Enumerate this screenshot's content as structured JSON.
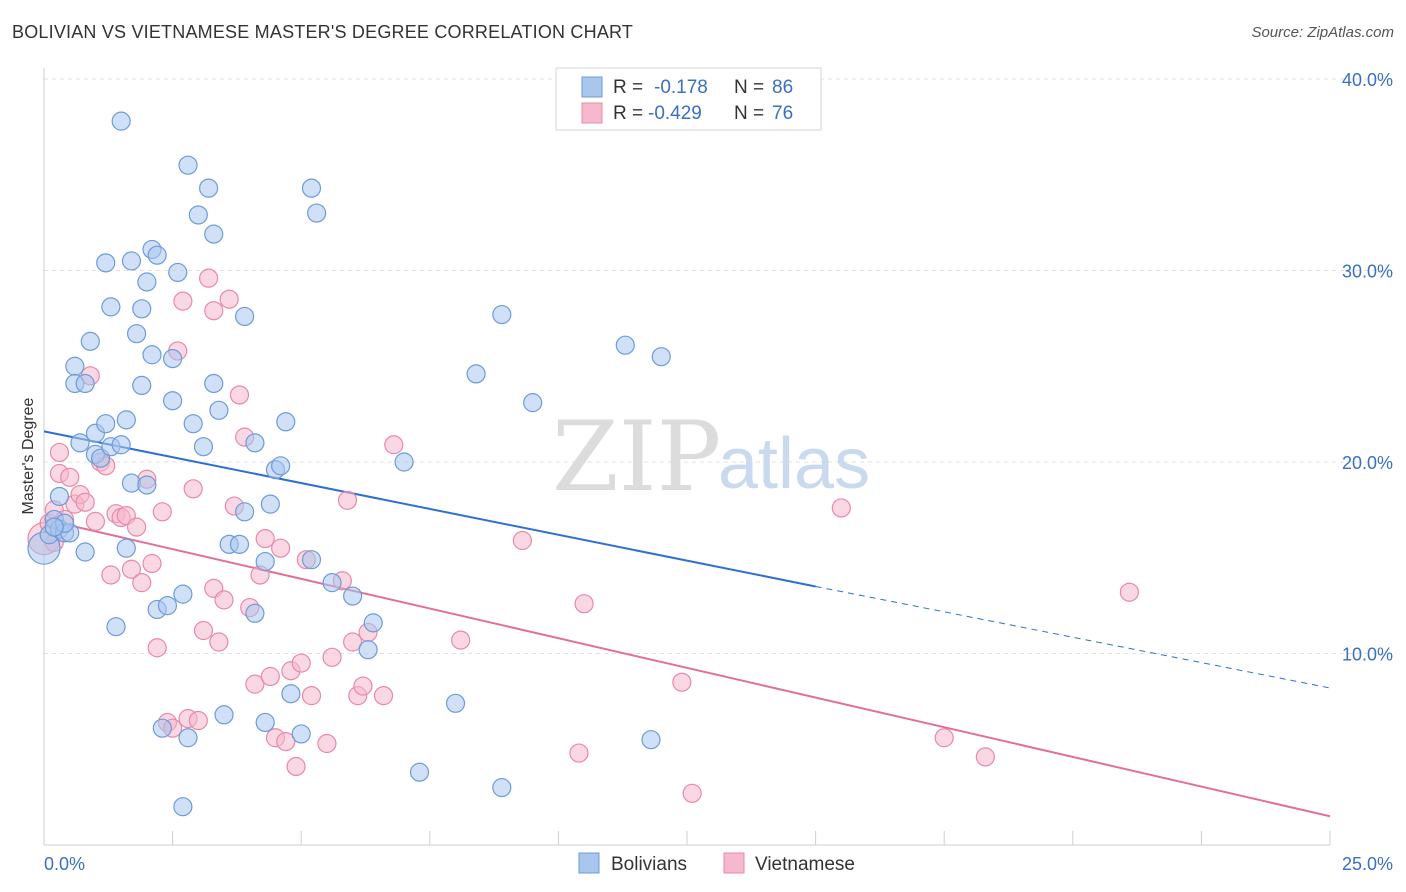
{
  "header": {
    "title": "BOLIVIAN VS VIETNAMESE MASTER'S DEGREE CORRELATION CHART",
    "source": "Source: ZipAtlas.com"
  },
  "watermark": {
    "zip": "ZIP",
    "atlas": "atlas"
  },
  "legend": {
    "r_label": "R =",
    "n_label": "N =",
    "series": [
      {
        "name": "Bolivians",
        "r": "-0.178",
        "n": "86"
      },
      {
        "name": "Vietnamese",
        "r": "-0.429",
        "n": "76"
      }
    ]
  },
  "colors": {
    "bolivians_fill": "#a9c6ef",
    "bolivians_stroke": "#6e9bd8",
    "bolivians_line": "#2f6fd1",
    "vietnamese_fill": "#f6b8cc",
    "vietnamese_stroke": "#e889a8",
    "vietnamese_line": "#e0709a",
    "tick_text": "#3a6fc4",
    "grid": "#e0e0e0"
  },
  "chart_data": {
    "type": "scatter",
    "ylabel": "Master's Degree",
    "xlim": [
      0,
      25
    ],
    "ylim": [
      0,
      40
    ],
    "x_tick_labels": [
      "0.0%",
      "25.0%"
    ],
    "y_tick_values": [
      10,
      20,
      30,
      40
    ],
    "y_tick_labels": [
      "10.0%",
      "20.0%",
      "30.0%",
      "40.0%"
    ],
    "grid": true,
    "legend_position": "top-center",
    "series": [
      {
        "name": "Bolivians",
        "r": -0.178,
        "n": 86,
        "trend": {
          "x0": 0,
          "y0": 21.6,
          "x1": 15,
          "y1": 13.5,
          "dash_to_x": 25,
          "dash_to_y": 8.2
        },
        "points": [
          [
            0.0,
            15.5
          ],
          [
            0.1,
            16.2
          ],
          [
            0.2,
            17.0
          ],
          [
            0.3,
            16.5
          ],
          [
            0.3,
            18.2
          ],
          [
            0.4,
            16.3
          ],
          [
            0.5,
            16.3
          ],
          [
            0.6,
            25.0
          ],
          [
            0.6,
            24.1
          ],
          [
            0.7,
            21.0
          ],
          [
            0.8,
            15.3
          ],
          [
            0.8,
            24.1
          ],
          [
            0.9,
            26.3
          ],
          [
            1.0,
            20.4
          ],
          [
            1.0,
            21.5
          ],
          [
            1.1,
            20.2
          ],
          [
            1.2,
            30.4
          ],
          [
            1.2,
            22.0
          ],
          [
            1.3,
            28.1
          ],
          [
            1.3,
            20.8
          ],
          [
            1.4,
            11.4
          ],
          [
            1.5,
            37.8
          ],
          [
            1.5,
            20.9
          ],
          [
            1.6,
            22.2
          ],
          [
            1.6,
            15.5
          ],
          [
            1.7,
            30.5
          ],
          [
            1.7,
            18.9
          ],
          [
            1.8,
            26.7
          ],
          [
            1.9,
            28.0
          ],
          [
            1.9,
            24.0
          ],
          [
            2.0,
            29.4
          ],
          [
            2.0,
            18.8
          ],
          [
            2.1,
            25.6
          ],
          [
            2.1,
            31.1
          ],
          [
            2.2,
            30.8
          ],
          [
            2.2,
            12.3
          ],
          [
            2.3,
            6.1
          ],
          [
            2.4,
            12.5
          ],
          [
            2.5,
            23.2
          ],
          [
            2.5,
            25.4
          ],
          [
            2.6,
            29.9
          ],
          [
            2.7,
            13.1
          ],
          [
            2.7,
            2.0
          ],
          [
            2.8,
            5.6
          ],
          [
            2.8,
            35.5
          ],
          [
            2.9,
            22.0
          ],
          [
            3.0,
            32.9
          ],
          [
            3.1,
            20.8
          ],
          [
            3.2,
            34.3
          ],
          [
            3.3,
            24.1
          ],
          [
            3.3,
            31.9
          ],
          [
            3.4,
            22.7
          ],
          [
            3.5,
            6.8
          ],
          [
            3.6,
            15.7
          ],
          [
            3.8,
            15.7
          ],
          [
            3.9,
            17.4
          ],
          [
            3.9,
            27.6
          ],
          [
            4.1,
            21.0
          ],
          [
            4.1,
            12.1
          ],
          [
            4.3,
            6.4
          ],
          [
            4.3,
            14.8
          ],
          [
            4.4,
            17.8
          ],
          [
            4.5,
            19.6
          ],
          [
            4.6,
            19.8
          ],
          [
            4.7,
            22.1
          ],
          [
            4.8,
            7.9
          ],
          [
            5.0,
            5.8
          ],
          [
            5.2,
            14.9
          ],
          [
            5.2,
            34.3
          ],
          [
            5.3,
            33.0
          ],
          [
            5.6,
            13.7
          ],
          [
            6.0,
            13.0
          ],
          [
            6.3,
            10.2
          ],
          [
            6.4,
            11.6
          ],
          [
            7.0,
            20.0
          ],
          [
            7.3,
            3.8
          ],
          [
            8.0,
            7.4
          ],
          [
            8.4,
            24.6
          ],
          [
            8.9,
            27.7
          ],
          [
            8.9,
            3.0
          ],
          [
            9.5,
            23.1
          ],
          [
            11.3,
            26.1
          ],
          [
            11.8,
            5.5
          ],
          [
            12.0,
            25.5
          ],
          [
            0.4,
            16.8
          ],
          [
            0.2,
            16.6
          ]
        ]
      },
      {
        "name": "Vietnamese",
        "r": -0.429,
        "n": 76,
        "trend": {
          "x0": 0,
          "y0": 17.0,
          "x1": 25,
          "y1": 1.5
        },
        "points": [
          [
            0.0,
            16.0
          ],
          [
            0.1,
            16.8
          ],
          [
            0.2,
            17.5
          ],
          [
            0.3,
            19.4
          ],
          [
            0.3,
            20.5
          ],
          [
            0.4,
            17.0
          ],
          [
            0.5,
            19.2
          ],
          [
            0.6,
            17.8
          ],
          [
            0.7,
            18.3
          ],
          [
            0.8,
            17.9
          ],
          [
            0.9,
            24.5
          ],
          [
            1.0,
            16.9
          ],
          [
            1.1,
            20.0
          ],
          [
            1.2,
            19.8
          ],
          [
            1.3,
            14.1
          ],
          [
            1.4,
            17.3
          ],
          [
            1.5,
            17.1
          ],
          [
            1.6,
            17.2
          ],
          [
            1.7,
            14.4
          ],
          [
            1.8,
            16.6
          ],
          [
            1.9,
            13.7
          ],
          [
            2.0,
            19.1
          ],
          [
            2.1,
            14.7
          ],
          [
            2.2,
            10.3
          ],
          [
            2.3,
            17.4
          ],
          [
            2.4,
            6.4
          ],
          [
            2.5,
            6.1
          ],
          [
            2.6,
            25.8
          ],
          [
            2.7,
            28.4
          ],
          [
            2.8,
            6.6
          ],
          [
            2.9,
            18.6
          ],
          [
            3.0,
            6.5
          ],
          [
            3.1,
            11.2
          ],
          [
            3.2,
            29.6
          ],
          [
            3.3,
            27.9
          ],
          [
            3.3,
            13.4
          ],
          [
            3.4,
            10.6
          ],
          [
            3.5,
            12.8
          ],
          [
            3.6,
            28.5
          ],
          [
            3.7,
            17.7
          ],
          [
            3.8,
            23.5
          ],
          [
            3.9,
            21.3
          ],
          [
            4.0,
            12.4
          ],
          [
            4.1,
            8.4
          ],
          [
            4.2,
            14.1
          ],
          [
            4.3,
            16.0
          ],
          [
            4.4,
            8.8
          ],
          [
            4.5,
            5.6
          ],
          [
            4.6,
            15.5
          ],
          [
            4.7,
            5.4
          ],
          [
            4.8,
            9.1
          ],
          [
            4.9,
            4.1
          ],
          [
            5.0,
            9.5
          ],
          [
            5.1,
            14.9
          ],
          [
            5.2,
            7.8
          ],
          [
            5.5,
            5.3
          ],
          [
            5.6,
            9.8
          ],
          [
            5.8,
            13.8
          ],
          [
            5.9,
            18.0
          ],
          [
            6.0,
            10.6
          ],
          [
            6.1,
            7.8
          ],
          [
            6.2,
            8.3
          ],
          [
            6.3,
            11.1
          ],
          [
            6.6,
            7.8
          ],
          [
            6.8,
            20.9
          ],
          [
            8.1,
            10.7
          ],
          [
            9.3,
            15.9
          ],
          [
            10.4,
            4.8
          ],
          [
            10.5,
            12.6
          ],
          [
            12.4,
            8.5
          ],
          [
            12.6,
            2.7
          ],
          [
            15.5,
            17.6
          ],
          [
            17.5,
            5.6
          ],
          [
            18.3,
            4.6
          ],
          [
            21.1,
            13.2
          ],
          [
            0.2,
            15.8
          ]
        ]
      }
    ]
  }
}
